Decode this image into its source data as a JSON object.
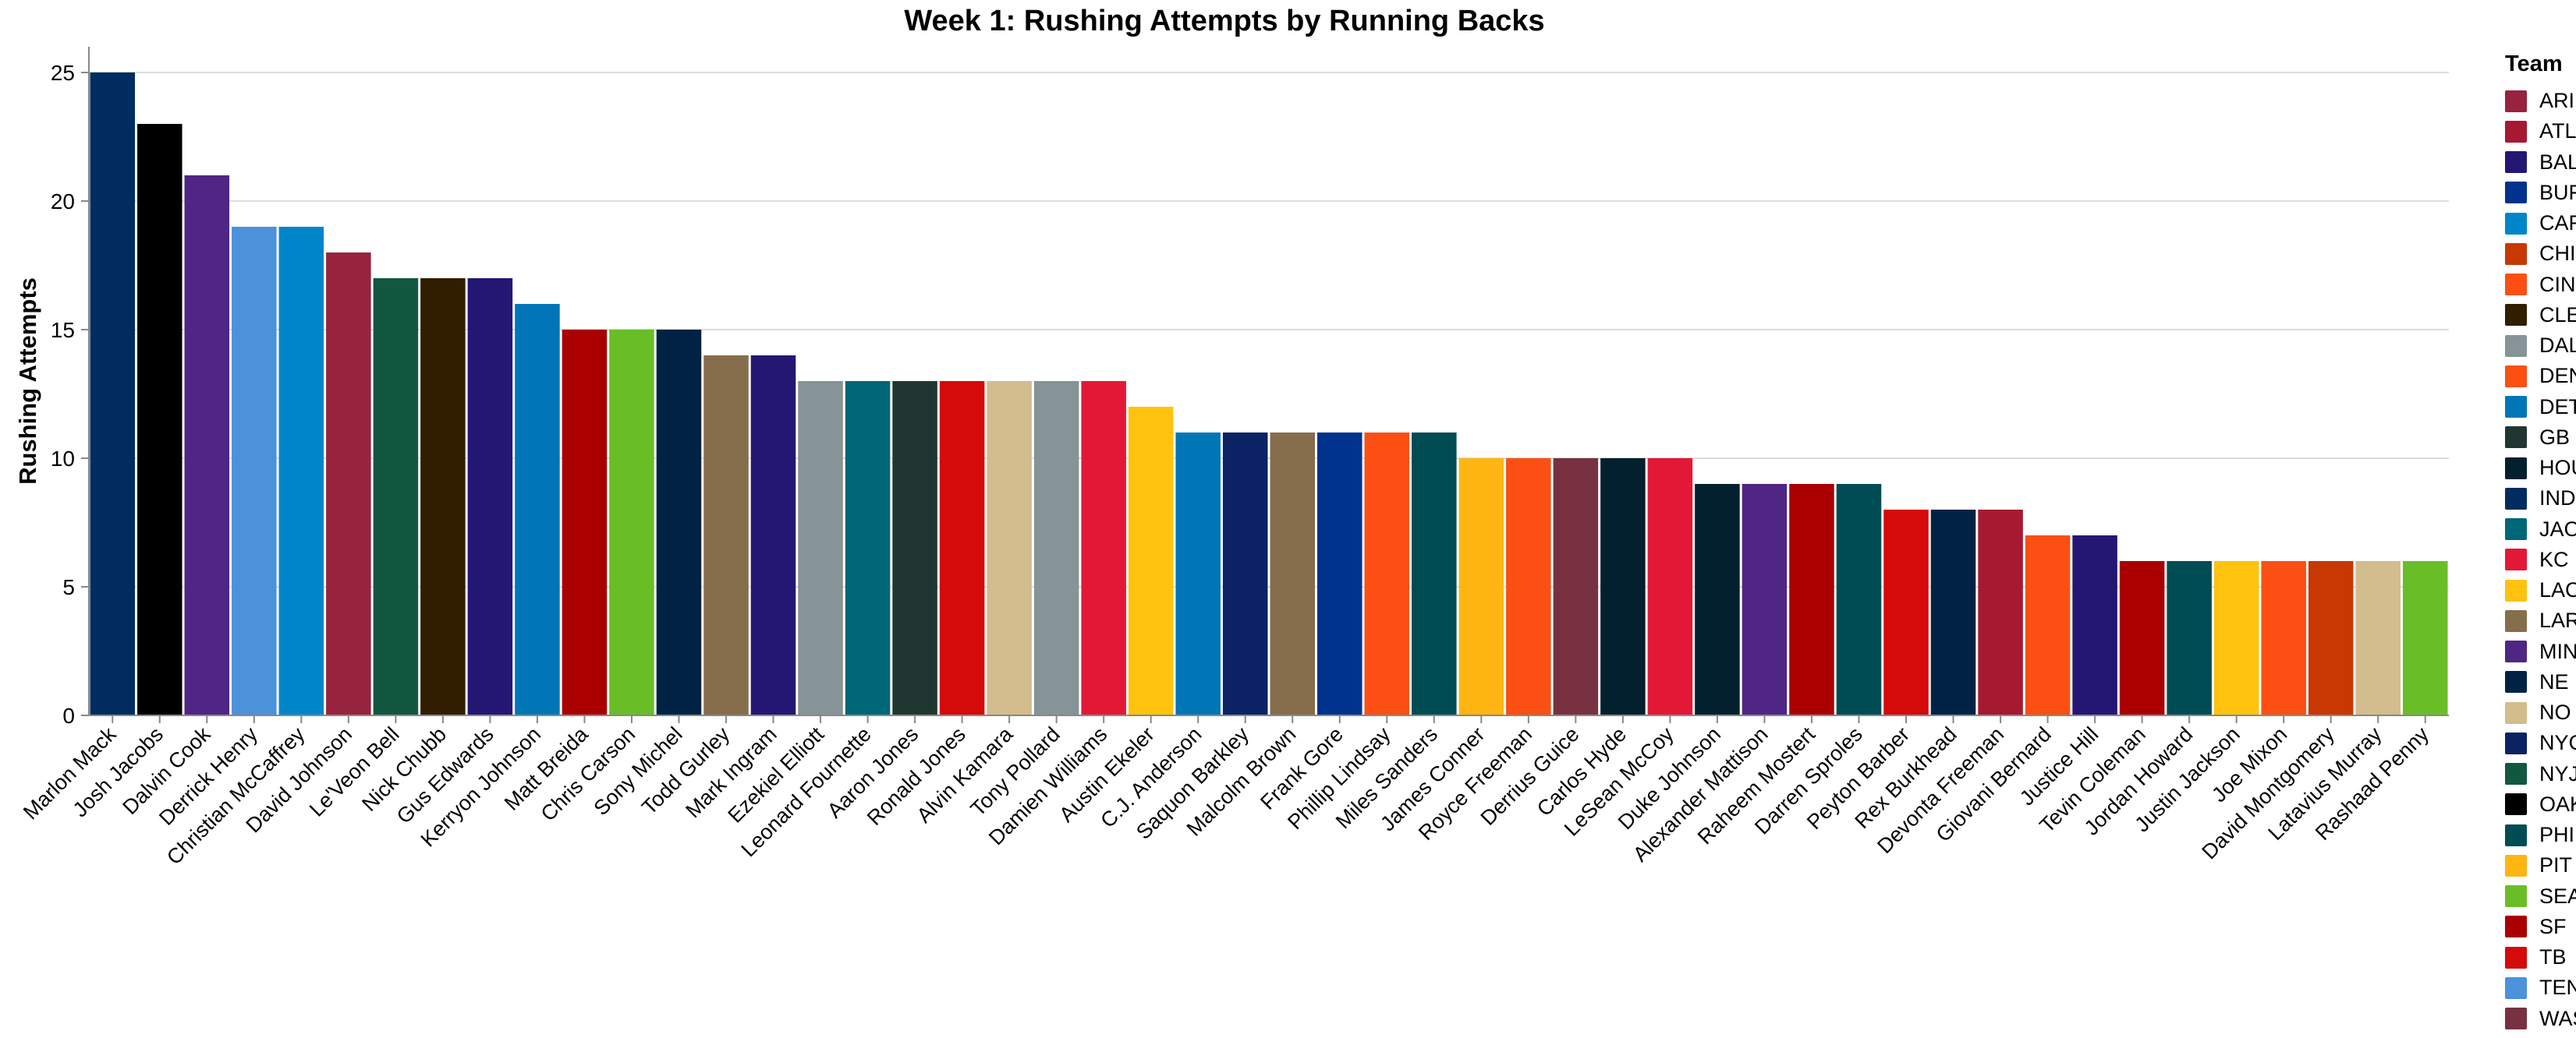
{
  "chart_data": {
    "type": "bar",
    "title": "Week 1: Rushing Attempts by Running Backs",
    "xlabel": "",
    "ylabel": "Rushing Attempts",
    "ylim": [
      0,
      26
    ],
    "yticks": [
      0,
      5,
      10,
      15,
      20,
      25
    ],
    "grid": true,
    "legend": {
      "title": "Team",
      "placement": "right"
    },
    "categories": [
      "Marlon Mack",
      "Josh Jacobs",
      "Dalvin Cook",
      "Derrick Henry",
      "Christian McCaffrey",
      "David Johnson",
      "Le'Veon Bell",
      "Nick Chubb",
      "Gus Edwards",
      "Kerryon Johnson",
      "Matt Breida",
      "Chris Carson",
      "Sony Michel",
      "Todd Gurley",
      "Mark Ingram",
      "Ezekiel Elliott",
      "Leonard Fournette",
      "Aaron Jones",
      "Ronald Jones",
      "Alvin Kamara",
      "Tony Pollard",
      "Damien Williams",
      "Austin Ekeler",
      "C.J. Anderson",
      "Saquon Barkley",
      "Malcolm Brown",
      "Frank Gore",
      "Phillip Lindsay",
      "Miles Sanders",
      "James Conner",
      "Royce Freeman",
      "Derrius Guice",
      "Carlos Hyde",
      "LeSean McCoy",
      "Duke Johnson",
      "Alexander Mattison",
      "Raheem Mostert",
      "Darren Sproles",
      "Peyton Barber",
      "Rex Burkhead",
      "Devonta Freeman",
      "Giovani Bernard",
      "Justice Hill",
      "Tevin Coleman",
      "Jordan Howard",
      "Justin Jackson",
      "Joe Mixon",
      "David Montgomery",
      "Latavius Murray",
      "Rashaad Penny"
    ],
    "values": [
      25,
      23,
      21,
      19,
      19,
      18,
      17,
      17,
      17,
      16,
      15,
      15,
      15,
      14,
      14,
      13,
      13,
      13,
      13,
      13,
      13,
      13,
      12,
      11,
      11,
      11,
      11,
      11,
      11,
      10,
      10,
      10,
      10,
      10,
      9,
      9,
      9,
      9,
      8,
      8,
      8,
      7,
      7,
      6,
      6,
      6,
      6,
      6,
      6,
      6
    ],
    "teams": [
      "IND",
      "OAK",
      "MIN",
      "TEN",
      "CAR",
      "ARI",
      "NYJ",
      "CLE",
      "BAL",
      "DET",
      "SF",
      "SEA",
      "NE",
      "LAR",
      "BAL",
      "DAL",
      "JAC",
      "GB",
      "TB",
      "NO",
      "DAL",
      "KC",
      "LAC",
      "DET",
      "NYG",
      "LAR",
      "BUF",
      "DEN",
      "PHI",
      "PIT",
      "DEN",
      "WAS",
      "HOU",
      "KC",
      "HOU",
      "MIN",
      "SF",
      "PHI",
      "TB",
      "NE",
      "ATL",
      "CIN",
      "BAL",
      "SF",
      "PHI",
      "LAC",
      "CIN",
      "CHI",
      "NO",
      "SEA"
    ],
    "team_colors": {
      "ARI": "#97233F",
      "ATL": "#A71930",
      "BAL": "#241773",
      "BUF": "#00338D",
      "CAR": "#0085CA",
      "CHI": "#C83803",
      "CIN": "#FB4F14",
      "CLE": "#311D00",
      "DAL": "#869397",
      "DEN": "#FB4F14",
      "DET": "#0076B6",
      "GB": "#203731",
      "HOU": "#03202F",
      "IND": "#002C5F",
      "JAC": "#006778",
      "KC": "#E31837",
      "LAC": "#FFC20E",
      "LAR": "#866D4B",
      "MIN": "#4F2683",
      "NE": "#002244",
      "NO": "#D3BC8D",
      "NYG": "#0B2265",
      "NYJ": "#125740",
      "OAK": "#000000",
      "PHI": "#004C54",
      "PIT": "#FFB612",
      "SEA": "#69BE28",
      "SF": "#AA0000",
      "TB": "#D50A0A",
      "TEN": "#4B92DB",
      "WAS": "#773141"
    },
    "legend_order": [
      "ARI",
      "ATL",
      "BAL",
      "BUF",
      "CAR",
      "CHI",
      "CIN",
      "CLE",
      "DAL",
      "DEN",
      "DET",
      "GB",
      "HOU",
      "IND",
      "JAC",
      "KC",
      "LAC",
      "LAR",
      "MIN",
      "NE",
      "NO",
      "NYG",
      "NYJ",
      "OAK",
      "PHI",
      "PIT",
      "SEA",
      "SF",
      "TB",
      "TEN",
      "WAS"
    ]
  }
}
